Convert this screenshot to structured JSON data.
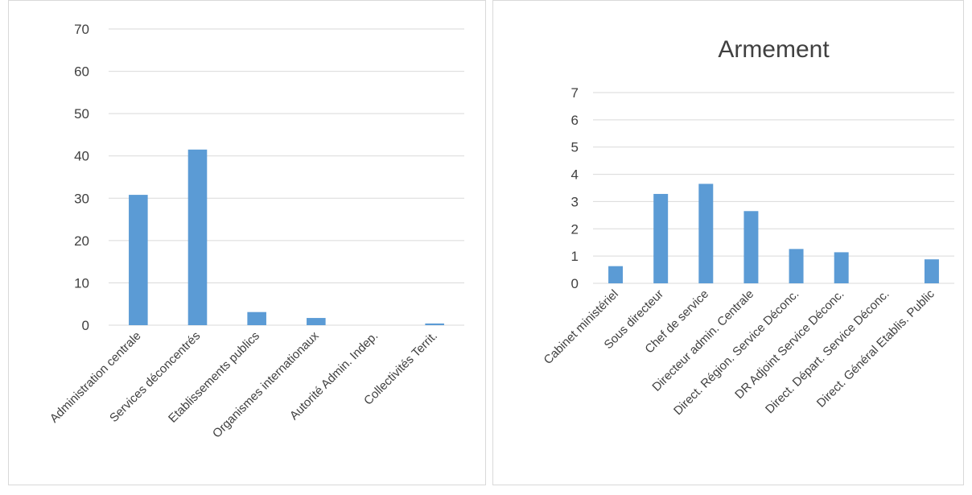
{
  "chart_data": [
    {
      "type": "bar",
      "title": "",
      "categories": [
        "Administration centrale",
        "Services déconcentrés",
        "Etablissements publics",
        "Organismes internationaux",
        "Autorité Admin. Indep.",
        "Collectivités Territ."
      ],
      "values": [
        30.8,
        41.5,
        3.1,
        1.7,
        0,
        0.4
      ],
      "yticks": [
        "0",
        "10",
        "20",
        "30",
        "40",
        "50",
        "60",
        "70"
      ],
      "ylim": [
        0,
        70
      ],
      "grid": true,
      "legend": "none",
      "bar_color": "#5b9bd5"
    },
    {
      "type": "bar",
      "title": "Armement",
      "categories": [
        "Cabinet ministériel",
        "Sous directeur",
        "Chef de service",
        "Directeur admin. Centrale",
        "Direct. Région. Service Déconc.",
        "DR Adjoint Service Déconc.",
        "Direct. Départ. Service Déconc.",
        "Direct. Général Etablis. Public"
      ],
      "values": [
        0.63,
        3.28,
        3.65,
        2.65,
        1.26,
        1.14,
        0,
        0.88
      ],
      "yticks": [
        "0",
        "1",
        "2",
        "3",
        "4",
        "5",
        "6",
        "7"
      ],
      "ylim": [
        0,
        7
      ],
      "grid": true,
      "legend": "none",
      "bar_color": "#5b9bd5"
    }
  ]
}
